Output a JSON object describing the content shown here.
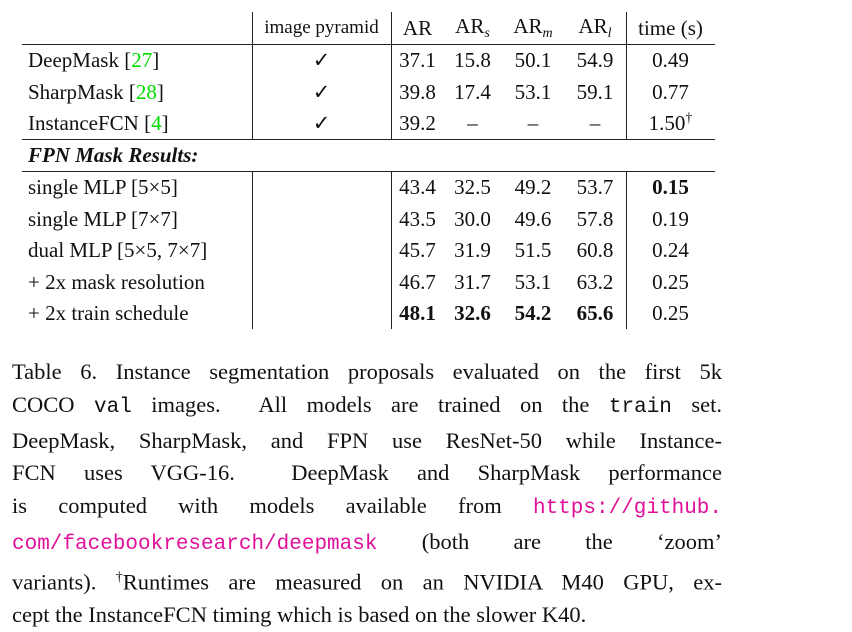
{
  "table": {
    "headers": {
      "method": "",
      "image_pyramid": "image pyramid",
      "ar": "AR",
      "ar_s_base": "AR",
      "ar_s_sub": "s",
      "ar_m_base": "AR",
      "ar_m_sub": "m",
      "ar_l_base": "AR",
      "ar_l_sub": "l",
      "time": "time (s)"
    },
    "baseline_rows": [
      {
        "name": "DeepMask ",
        "cite": "27",
        "pyramid": "✓",
        "ar": "37.1",
        "ars": "15.8",
        "arm": "50.1",
        "arl": "54.9",
        "time": "0.49",
        "dagger": ""
      },
      {
        "name": "SharpMask ",
        "cite": "28",
        "pyramid": "✓",
        "ar": "39.8",
        "ars": "17.4",
        "arm": "53.1",
        "arl": "59.1",
        "time": "0.77",
        "dagger": ""
      },
      {
        "name": "InstanceFCN ",
        "cite": "4",
        "pyramid": "✓",
        "ar": "39.2",
        "ars": "–",
        "arm": "–",
        "arl": "–",
        "time": "1.50",
        "dagger": "†"
      }
    ],
    "section_label": "FPN Mask Results:",
    "fpn_rows": [
      {
        "name": "single MLP [5×5]",
        "ar": "43.4",
        "ars": "32.5",
        "arm": "49.2",
        "arl": "53.7",
        "time": "0.15"
      },
      {
        "name": "single MLP [7×7]",
        "ar": "43.5",
        "ars": "30.0",
        "arm": "49.6",
        "arl": "57.8",
        "time": "0.19"
      },
      {
        "name": "dual MLP [5×5, 7×7]",
        "ar": "45.7",
        "ars": "31.9",
        "arm": "51.5",
        "arl": "60.8",
        "time": "0.24"
      },
      {
        "name": "+ 2x mask resolution",
        "ar": "46.7",
        "ars": "31.7",
        "arm": "53.1",
        "arl": "63.2",
        "time": "0.25"
      },
      {
        "name": "+ 2x train schedule",
        "ar": "48.1",
        "ars": "32.6",
        "arm": "54.2",
        "arl": "65.6",
        "time": "0.25"
      }
    ],
    "bold_cells": [
      "fpn_rows.0.time",
      "fpn_rows.4.ar",
      "fpn_rows.4.ars",
      "fpn_rows.4.arm",
      "fpn_rows.4.arl"
    ]
  },
  "caption": {
    "lines": [
      [
        {
          "t": "Table 6. Instance segmentation proposals evaluated on the first 5k"
        }
      ],
      [
        {
          "t": "COCO "
        },
        {
          "t": "val",
          "s": "mono"
        },
        {
          "t": " images.  All models are trained on the "
        },
        {
          "t": "train",
          "s": "mono"
        },
        {
          "t": " set."
        }
      ],
      [
        {
          "t": "DeepMask, SharpMask, and FPN use ResNet-50 while Instance-"
        }
      ],
      [
        {
          "t": "FCN uses VGG-16.  DeepMask and SharpMask performance"
        }
      ],
      [
        {
          "t": "is computed with models available from "
        },
        {
          "t": "https://github.",
          "s": "link"
        }
      ],
      [
        {
          "t": "com/facebookresearch/deepmask",
          "s": "link"
        },
        {
          "t": " (both are the ‘zoom’"
        }
      ],
      [
        {
          "t": "variants). "
        },
        {
          "t": "†",
          "s": "sup"
        },
        {
          "t": "Runtimes are measured on an NVIDIA M40 GPU, ex-"
        }
      ],
      [
        {
          "t": "cept the InstanceFCN timing which is based on the slower K40."
        }
      ]
    ]
  },
  "colors": {
    "citation": "#00dd00",
    "link": "#e0109a"
  }
}
